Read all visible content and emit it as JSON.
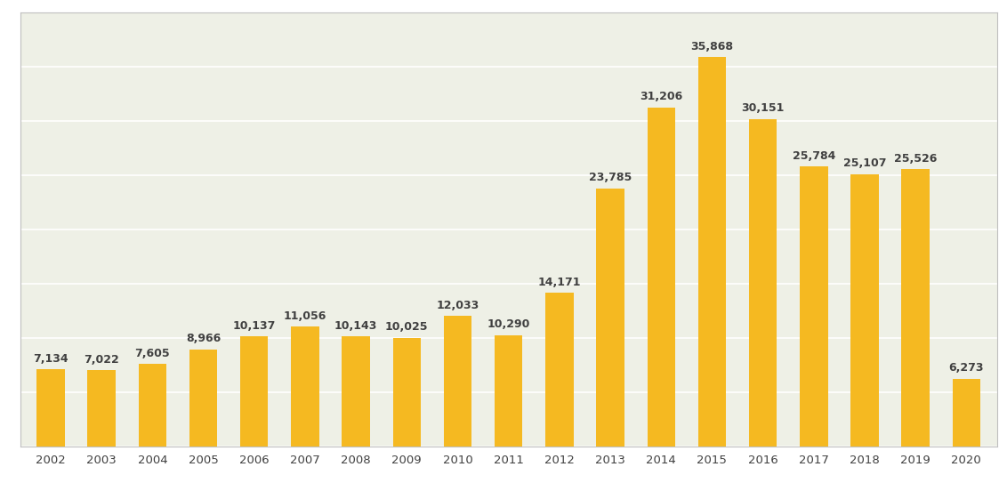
{
  "chart_data": {
    "type": "bar",
    "categories": [
      "2002",
      "2003",
      "2004",
      "2005",
      "2006",
      "2007",
      "2008",
      "2009",
      "2010",
      "2011",
      "2012",
      "2013",
      "2014",
      "2015",
      "2016",
      "2017",
      "2018",
      "2019",
      "2020"
    ],
    "values": [
      7134,
      7022,
      7605,
      8966,
      10137,
      11056,
      10143,
      10025,
      12033,
      10290,
      14171,
      23785,
      31206,
      35868,
      30151,
      25784,
      25107,
      25526,
      6273
    ],
    "value_labels": [
      "7,134",
      "7,022",
      "7,605",
      "8,966",
      "10,137",
      "11,056",
      "10,143",
      "10,025",
      "12,033",
      "10,290",
      "14,171",
      "23,785",
      "31,206",
      "35,868",
      "30,151",
      "25,784",
      "25,107",
      "25,526",
      "6,273"
    ],
    "data_labels": true,
    "color": "#f5b921",
    "ylim": [
      0,
      40000
    ],
    "yticks": [
      0,
      5000,
      10000,
      15000,
      20000,
      25000,
      30000,
      35000,
      40000
    ],
    "grid": true,
    "tick_labels": "x"
  }
}
